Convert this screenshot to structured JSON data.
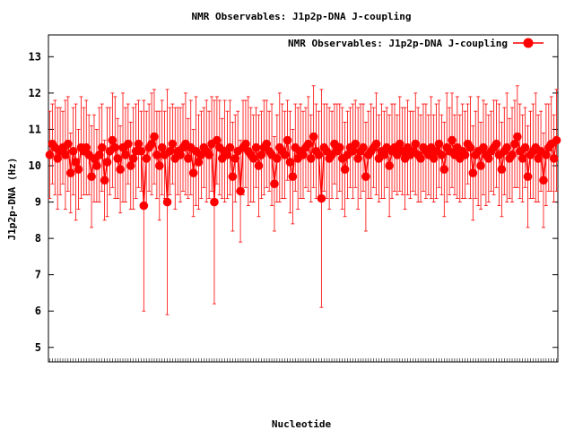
{
  "chart_data": {
    "type": "scatter",
    "title": "NMR Observables: J1p2p-DNA J-coupling",
    "xlabel": "Nucleotide",
    "ylabel": "J1p2p-DNA (Hz)",
    "legend": {
      "label": "NMR Observables: J1p2p-DNA J-coupling",
      "position": "top-right"
    },
    "ylim": [
      4.6,
      13.6
    ],
    "yticks": [
      5,
      6,
      7,
      8,
      9,
      10,
      11,
      12,
      13
    ],
    "color": "#ff0000",
    "grid": false,
    "series": [
      {
        "values": [
          10.3,
          10.6,
          10.5,
          10.2,
          10.4,
          10.5,
          10.3,
          10.6,
          9.8,
          10.4,
          10.1,
          9.9,
          10.5,
          10.4,
          10.5,
          10.3,
          9.7,
          10.2,
          10.0,
          10.3,
          10.5,
          9.6,
          10.1,
          10.4,
          10.7,
          10.5,
          10.2,
          9.9,
          10.5,
          10.3,
          10.6,
          10.0,
          10.2,
          10.4,
          10.6,
          10.4,
          8.9,
          10.2,
          10.5,
          10.6,
          10.8,
          10.3,
          10.0,
          10.5,
          10.3,
          9.0,
          10.4,
          10.6,
          10.2,
          10.4,
          10.3,
          10.5,
          10.6,
          10.2,
          10.5,
          9.8,
          10.4,
          10.1,
          10.3,
          10.5,
          10.4,
          10.3,
          10.6,
          9.0,
          10.7,
          10.5,
          10.2,
          10.4,
          10.3,
          10.5,
          9.7,
          10.2,
          10.4,
          9.3,
          10.5,
          10.6,
          10.4,
          10.3,
          10.2,
          10.5,
          10.0,
          10.3,
          10.5,
          10.6,
          10.4,
          10.3,
          9.5,
          10.2,
          10.5,
          10.4,
          10.3,
          10.7,
          10.1,
          9.7,
          10.5,
          10.2,
          10.4,
          10.3,
          10.5,
          10.6,
          10.2,
          10.8,
          10.4,
          10.3,
          9.1,
          10.5,
          10.4,
          10.2,
          10.3,
          10.6,
          10.4,
          10.5,
          10.2,
          9.9,
          10.3,
          10.5,
          10.4,
          10.6,
          10.2,
          10.4,
          10.5,
          9.7,
          10.3,
          10.4,
          10.5,
          10.6,
          10.2,
          10.4,
          10.3,
          10.5,
          10.0,
          10.4,
          10.5,
          10.3,
          10.6,
          10.4,
          10.2,
          10.5,
          10.3,
          10.4,
          10.6,
          10.3,
          10.2,
          10.5,
          10.4,
          10.3,
          10.5,
          10.2,
          10.4,
          10.6,
          10.3,
          9.9,
          10.5,
          10.4,
          10.7,
          10.3,
          10.5,
          10.2,
          10.4,
          10.3,
          10.6,
          10.5,
          9.8,
          10.3,
          10.4,
          10.0,
          10.5,
          10.3,
          10.2,
          10.4,
          10.5,
          10.6,
          10.3,
          9.9,
          10.4,
          10.5,
          10.2,
          10.3,
          10.6,
          10.8,
          10.4,
          10.2,
          10.5,
          9.7,
          10.3,
          10.4,
          10.5,
          10.2,
          10.4,
          9.6,
          10.3,
          10.5,
          10.6,
          10.2,
          10.7
        ]
      }
    ],
    "error_bar_halfwidths": [
      1.2,
      1.1,
      1.3,
      1.4,
      1.2,
      1.0,
      1.5,
      1.3,
      1.1,
      1.2,
      1.6,
      1.1,
      1.4,
      1.2,
      1.3,
      1.1,
      1.4,
      1.2,
      1.0,
      1.3,
      1.2,
      1.1,
      1.5,
      1.2,
      1.3,
      1.4,
      1.1,
      1.2,
      1.5,
      1.3,
      1.1,
      1.2,
      1.4,
      1.3,
      1.2,
      1.1,
      2.9,
      1.3,
      1.2,
      1.4,
      1.3,
      1.2,
      1.5,
      1.3,
      1.2,
      3.1,
      1.2,
      1.1,
      1.4,
      1.2,
      1.3,
      1.2,
      1.4,
      1.1,
      1.3,
      1.2,
      1.5,
      1.3,
      1.2,
      1.1,
      1.4,
      1.2,
      1.3,
      2.8,
      1.2,
      1.3,
      1.1,
      1.4,
      1.2,
      1.3,
      1.5,
      1.2,
      1.1,
      1.4,
      1.3,
      1.2,
      1.5,
      1.3,
      1.2,
      1.1,
      1.4,
      1.2,
      1.3,
      1.2,
      1.1,
      1.4,
      1.3,
      1.2,
      1.5,
      1.3,
      1.2,
      1.1,
      1.4,
      1.3,
      1.2,
      1.4,
      1.3,
      1.2,
      1.1,
      1.3,
      1.2,
      1.4,
      1.3,
      1.2,
      3.0,
      1.2,
      1.3,
      1.4,
      1.2,
      1.1,
      1.3,
      1.2,
      1.4,
      1.3,
      1.2,
      1.1,
      1.3,
      1.2,
      1.4,
      1.3,
      1.2,
      1.5,
      1.2,
      1.3,
      1.1,
      1.4,
      1.2,
      1.3,
      1.2,
      1.1,
      1.4,
      1.3,
      1.2,
      1.1,
      1.3,
      1.2,
      1.4,
      1.3,
      1.2,
      1.1,
      1.4,
      1.3,
      1.2,
      1.2,
      1.3,
      1.1,
      1.4,
      1.2,
      1.3,
      1.2,
      1.1,
      1.3,
      1.5,
      1.2,
      1.3,
      1.1,
      1.4,
      1.2,
      1.3,
      1.2,
      1.1,
      1.4,
      1.3,
      1.2,
      1.5,
      1.2,
      1.3,
      1.4,
      1.2,
      1.1,
      1.3,
      1.2,
      1.4,
      1.3,
      1.2,
      1.5,
      1.1,
      1.3,
      1.2,
      1.4,
      1.3,
      1.2,
      1.1,
      1.4,
      1.2,
      1.3,
      1.5,
      1.2,
      1.1,
      1.3,
      1.4,
      1.2,
      1.3,
      1.2,
      1.4,
      1.1,
      1.3,
      1.2,
      1.5
    ]
  }
}
